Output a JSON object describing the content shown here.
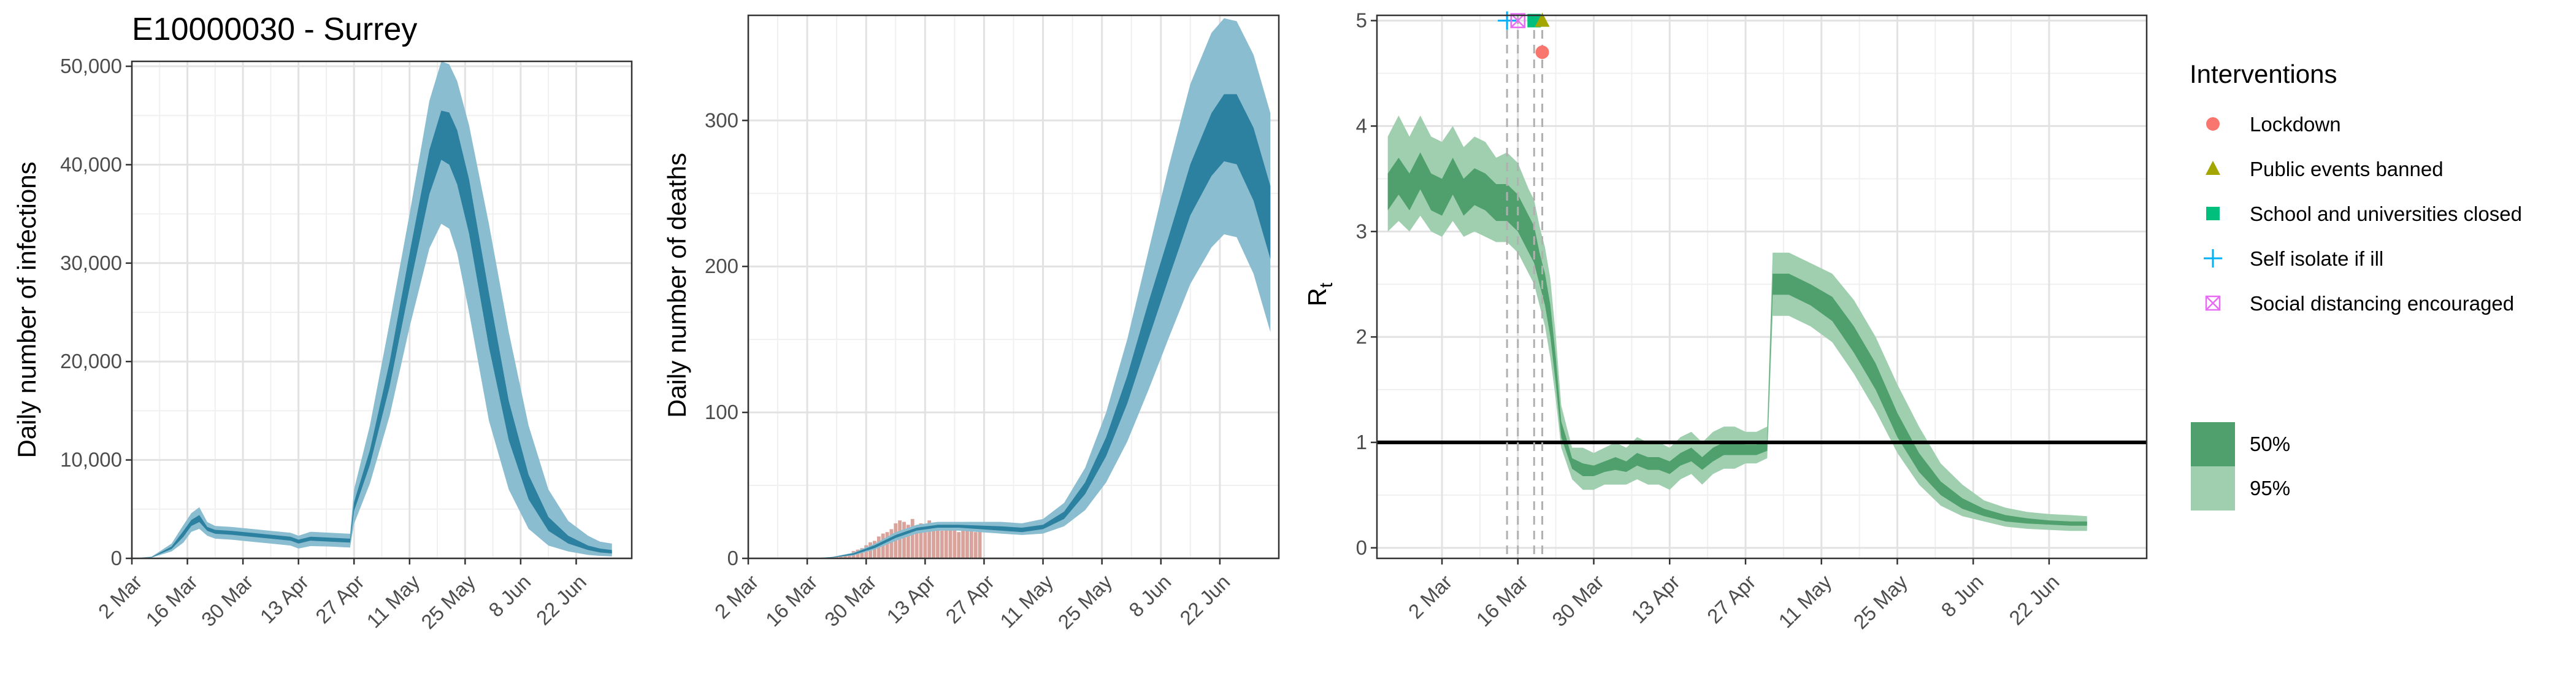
{
  "colors": {
    "infections_95": "#8bbdd0",
    "infections_50": "#2c80a0",
    "deaths_bar": "#d9a39b",
    "rt_95": "#9fcfae",
    "rt_50": "#4fa06c",
    "lockdown": "#f8766d",
    "public_events": "#a3a500",
    "schools": "#00bf7d",
    "self_isolate": "#00b0f6",
    "social_distancing": "#e76bf3"
  },
  "chart_data": [
    {
      "id": "infections",
      "type": "area",
      "title": "E10000030 - Surrey",
      "xlabel": "",
      "ylabel": "Daily number of infections",
      "grid": true,
      "xlim": [
        0,
        126
      ],
      "ylim": [
        0,
        50500
      ],
      "x_ticks": [
        0,
        14,
        28,
        42,
        56,
        70,
        84,
        98,
        112
      ],
      "x_tick_labels": [
        "2 Mar",
        "16 Mar",
        "30 Mar",
        "13 Apr",
        "27 Apr",
        "11 May",
        "25 May",
        "8 Jun",
        "22 Jun"
      ],
      "y_ticks": [
        0,
        10000,
        20000,
        30000,
        40000,
        50000
      ],
      "y_tick_labels": [
        "0",
        "10,000",
        "20,000",
        "30,000",
        "40,000",
        "50,000"
      ],
      "series": [
        {
          "level": "95%",
          "x": [
            0,
            5,
            10,
            13,
            15,
            17,
            19,
            21,
            25,
            30,
            35,
            40,
            42,
            45,
            50,
            55,
            56,
            60,
            65,
            70,
            75,
            78,
            80,
            82,
            85,
            90,
            95,
            100,
            105,
            110,
            115,
            118,
            121
          ],
          "lower": [
            0,
            80,
            700,
            1600,
            2700,
            3000,
            2300,
            2000,
            1900,
            1700,
            1500,
            1300,
            1000,
            1250,
            1200,
            1100,
            3500,
            7600,
            14500,
            23500,
            31500,
            34000,
            33500,
            31000,
            25000,
            14000,
            7000,
            3000,
            1300,
            700,
            350,
            250,
            200
          ],
          "upper": [
            0,
            180,
            1500,
            3400,
            4600,
            5200,
            3700,
            3300,
            3200,
            3000,
            2800,
            2600,
            2300,
            2700,
            2600,
            2500,
            7000,
            13500,
            24000,
            35000,
            46500,
            50500,
            50200,
            48500,
            44000,
            34000,
            23000,
            13500,
            7000,
            3800,
            2300,
            1700,
            1500
          ]
        },
        {
          "level": "50%",
          "x": [
            0,
            5,
            10,
            13,
            15,
            17,
            19,
            21,
            25,
            30,
            35,
            40,
            42,
            45,
            50,
            55,
            56,
            60,
            65,
            70,
            75,
            78,
            80,
            82,
            85,
            90,
            95,
            100,
            105,
            110,
            115,
            118,
            121
          ],
          "lower": [
            0,
            100,
            950,
            2200,
            3300,
            3700,
            2800,
            2500,
            2400,
            2200,
            2000,
            1800,
            1500,
            1800,
            1700,
            1600,
            4800,
            9500,
            17500,
            27500,
            37000,
            40500,
            40000,
            38000,
            33000,
            21500,
            12000,
            6000,
            2800,
            1500,
            850,
            600,
            500
          ],
          "upper": [
            0,
            140,
            1200,
            2800,
            3900,
            4400,
            3200,
            2900,
            2800,
            2600,
            2400,
            2200,
            1900,
            2200,
            2100,
            2000,
            5700,
            11000,
            20000,
            31000,
            41500,
            45500,
            45300,
            43500,
            38500,
            27000,
            16000,
            8500,
            4200,
            2300,
            1300,
            1000,
            850
          ]
        }
      ]
    },
    {
      "id": "deaths",
      "type": "area",
      "title": "",
      "xlabel": "",
      "ylabel": "Daily number of deaths",
      "grid": true,
      "xlim": [
        0,
        126
      ],
      "ylim": [
        0,
        372
      ],
      "x_ticks": [
        0,
        14,
        28,
        42,
        56,
        70,
        84,
        98,
        112
      ],
      "x_tick_labels": [
        "2 Mar",
        "16 Mar",
        "30 Mar",
        "13 Apr",
        "27 Apr",
        "11 May",
        "25 May",
        "8 Jun",
        "22 Jun"
      ],
      "y_ticks": [
        0,
        100,
        200,
        300
      ],
      "y_tick_labels": [
        "0",
        "100",
        "200",
        "300"
      ],
      "observed_deaths": {
        "x": [
          20,
          21,
          22,
          23,
          24,
          25,
          26,
          27,
          28,
          29,
          30,
          31,
          32,
          33,
          34,
          35,
          36,
          37,
          38,
          39,
          40,
          41,
          42,
          43,
          44,
          45,
          46,
          47,
          48,
          49,
          50,
          51,
          52,
          53,
          54,
          55
        ],
        "values": [
          1,
          1,
          2,
          2,
          3,
          5,
          6,
          7,
          9,
          11,
          12,
          15,
          17,
          18,
          20,
          24,
          26,
          25,
          23,
          27,
          22,
          24,
          20,
          26,
          21,
          23,
          19,
          24,
          20,
          22,
          18,
          21,
          19,
          20,
          18,
          22
        ]
      },
      "series": [
        {
          "level": "95%",
          "x": [
            0,
            15,
            20,
            25,
            30,
            35,
            40,
            45,
            50,
            55,
            60,
            65,
            70,
            75,
            80,
            85,
            90,
            95,
            100,
            105,
            110,
            113,
            116,
            120,
            124
          ],
          "lower": [
            0,
            0,
            0.5,
            2,
            6,
            12,
            17,
            19,
            19,
            18,
            17,
            16,
            17,
            22,
            33,
            52,
            80,
            115,
            152,
            188,
            213,
            222,
            220,
            195,
            155
          ],
          "upper": [
            0,
            0,
            1,
            4,
            10,
            18,
            23,
            25,
            25,
            25,
            25,
            24,
            27,
            38,
            62,
            100,
            150,
            210,
            270,
            325,
            360,
            370,
            368,
            345,
            305
          ]
        },
        {
          "level": "50%",
          "x": [
            0,
            15,
            20,
            25,
            30,
            35,
            40,
            45,
            50,
            55,
            60,
            65,
            70,
            75,
            80,
            85,
            90,
            95,
            100,
            105,
            110,
            113,
            116,
            120,
            124
          ],
          "lower": [
            0,
            0,
            0.6,
            2.5,
            7,
            14,
            19,
            21,
            21,
            20,
            19,
            18,
            20,
            27,
            44,
            70,
            106,
            150,
            193,
            235,
            262,
            272,
            270,
            245,
            205
          ],
          "upper": [
            0,
            0,
            0.9,
            3.5,
            9,
            16,
            21,
            23,
            23,
            22.5,
            22,
            21,
            23,
            32,
            52,
            83,
            125,
            175,
            222,
            270,
            305,
            318,
            318,
            295,
            255
          ]
        }
      ]
    },
    {
      "id": "rt",
      "type": "area",
      "title": "",
      "xlabel": "",
      "ylabel": "R",
      "ylabel_subscript": "t",
      "grid": true,
      "xlim": [
        -12,
        130
      ],
      "ylim": [
        -0.1,
        5.05
      ],
      "x_ticks": [
        0,
        14,
        28,
        42,
        56,
        70,
        84,
        98,
        112
      ],
      "x_tick_labels": [
        "2 Mar",
        "16 Mar",
        "30 Mar",
        "13 Apr",
        "27 Apr",
        "11 May",
        "25 May",
        "8 Jun",
        "22 Jun"
      ],
      "y_ticks": [
        0,
        1,
        2,
        3,
        4,
        5
      ],
      "y_tick_labels": [
        "0",
        "1",
        "2",
        "3",
        "4",
        "5"
      ],
      "reference_line": 1,
      "series": [
        {
          "level": "95%",
          "x": [
            -10,
            -8,
            -6,
            -4,
            -2,
            0,
            2,
            4,
            6,
            8,
            10,
            12,
            14,
            16,
            17,
            18,
            19,
            20,
            21,
            22,
            23,
            24,
            26,
            28,
            30,
            32,
            34,
            36,
            38,
            40,
            42,
            44,
            46,
            48,
            50,
            52,
            54,
            56,
            58,
            60,
            61,
            64,
            68,
            72,
            76,
            80,
            84,
            88,
            92,
            96,
            100,
            104,
            108,
            112,
            116,
            119
          ],
          "lower": [
            3.0,
            3.1,
            3.0,
            3.15,
            3.0,
            2.95,
            3.1,
            2.95,
            3.0,
            2.95,
            2.9,
            2.9,
            2.8,
            2.6,
            2.5,
            2.3,
            2.1,
            1.8,
            1.4,
            0.95,
            0.8,
            0.65,
            0.55,
            0.55,
            0.6,
            0.6,
            0.6,
            0.65,
            0.6,
            0.6,
            0.55,
            0.65,
            0.7,
            0.6,
            0.7,
            0.75,
            0.75,
            0.8,
            0.8,
            0.85,
            2.2,
            2.2,
            2.1,
            1.95,
            1.65,
            1.3,
            0.9,
            0.6,
            0.4,
            0.3,
            0.25,
            0.2,
            0.18,
            0.17,
            0.16,
            0.16
          ],
          "upper": [
            3.9,
            4.1,
            3.9,
            4.1,
            3.9,
            3.85,
            4.0,
            3.8,
            3.9,
            3.85,
            3.7,
            3.75,
            3.65,
            3.4,
            3.3,
            3.05,
            2.85,
            2.55,
            2.0,
            1.35,
            1.15,
            0.95,
            0.95,
            0.9,
            0.95,
            1.0,
            0.95,
            1.05,
            1.0,
            1.0,
            0.95,
            1.05,
            1.1,
            1.0,
            1.1,
            1.15,
            1.15,
            1.1,
            1.1,
            1.15,
            2.8,
            2.8,
            2.7,
            2.6,
            2.35,
            2.0,
            1.55,
            1.15,
            0.8,
            0.6,
            0.45,
            0.38,
            0.34,
            0.32,
            0.31,
            0.3
          ]
        },
        {
          "level": "50%",
          "x": [
            -10,
            -8,
            -6,
            -4,
            -2,
            0,
            2,
            4,
            6,
            8,
            10,
            12,
            14,
            16,
            17,
            18,
            19,
            20,
            21,
            22,
            23,
            24,
            26,
            28,
            30,
            32,
            34,
            36,
            38,
            40,
            42,
            44,
            46,
            48,
            50,
            52,
            54,
            56,
            58,
            60,
            61,
            64,
            68,
            72,
            76,
            80,
            84,
            88,
            92,
            96,
            100,
            104,
            108,
            112,
            116,
            119
          ],
          "lower": [
            3.2,
            3.35,
            3.2,
            3.4,
            3.2,
            3.15,
            3.35,
            3.15,
            3.25,
            3.2,
            3.1,
            3.1,
            3.0,
            2.8,
            2.7,
            2.5,
            2.3,
            2.0,
            1.55,
            1.05,
            0.9,
            0.75,
            0.68,
            0.68,
            0.72,
            0.74,
            0.72,
            0.78,
            0.74,
            0.74,
            0.7,
            0.78,
            0.82,
            0.74,
            0.82,
            0.88,
            0.88,
            0.88,
            0.88,
            0.92,
            2.4,
            2.4,
            2.3,
            2.15,
            1.85,
            1.5,
            1.05,
            0.72,
            0.5,
            0.37,
            0.3,
            0.25,
            0.23,
            0.22,
            0.21,
            0.21
          ],
          "upper": [
            3.55,
            3.7,
            3.55,
            3.75,
            3.55,
            3.5,
            3.7,
            3.5,
            3.6,
            3.55,
            3.45,
            3.45,
            3.35,
            3.15,
            3.05,
            2.8,
            2.6,
            2.3,
            1.8,
            1.2,
            1.03,
            0.85,
            0.8,
            0.78,
            0.82,
            0.86,
            0.82,
            0.9,
            0.86,
            0.86,
            0.82,
            0.9,
            0.95,
            0.86,
            0.95,
            1.0,
            1.0,
            0.98,
            0.98,
            1.02,
            2.6,
            2.6,
            2.5,
            2.38,
            2.1,
            1.75,
            1.28,
            0.9,
            0.63,
            0.47,
            0.37,
            0.31,
            0.28,
            0.26,
            0.25,
            0.25
          ]
        }
      ],
      "interventions": [
        {
          "name": "Self isolate if ill",
          "x": 12,
          "y": 5,
          "shape": "plus",
          "color_key": "self_isolate"
        },
        {
          "name": "Social distancing encouraged",
          "x": 14,
          "y": 5,
          "shape": "square-x",
          "color_key": "social_distancing"
        },
        {
          "name": "School and universities closed",
          "x": 17,
          "y": 5,
          "shape": "square",
          "color_key": "schools"
        },
        {
          "name": "Public events banned",
          "x": 18.5,
          "y": 5,
          "shape": "triangle",
          "color_key": "public_events"
        },
        {
          "name": "Lockdown",
          "x": 18.5,
          "y": 4.7,
          "shape": "circle",
          "color_key": "lockdown"
        }
      ]
    }
  ],
  "legend": {
    "interventions_title": "Interventions",
    "interventions": [
      {
        "label": "Lockdown",
        "shape": "circle",
        "color_key": "lockdown"
      },
      {
        "label": "Public events banned",
        "shape": "triangle",
        "color_key": "public_events"
      },
      {
        "label": "School and universities closed",
        "shape": "square",
        "color_key": "schools"
      },
      {
        "label": "Self isolate if ill",
        "shape": "plus",
        "color_key": "self_isolate"
      },
      {
        "label": "Social distancing encouraged",
        "shape": "square-x",
        "color_key": "social_distancing"
      }
    ],
    "intervals": [
      {
        "label": "50%",
        "color_key": "rt_50"
      },
      {
        "label": "95%",
        "color_key": "rt_95"
      }
    ]
  }
}
